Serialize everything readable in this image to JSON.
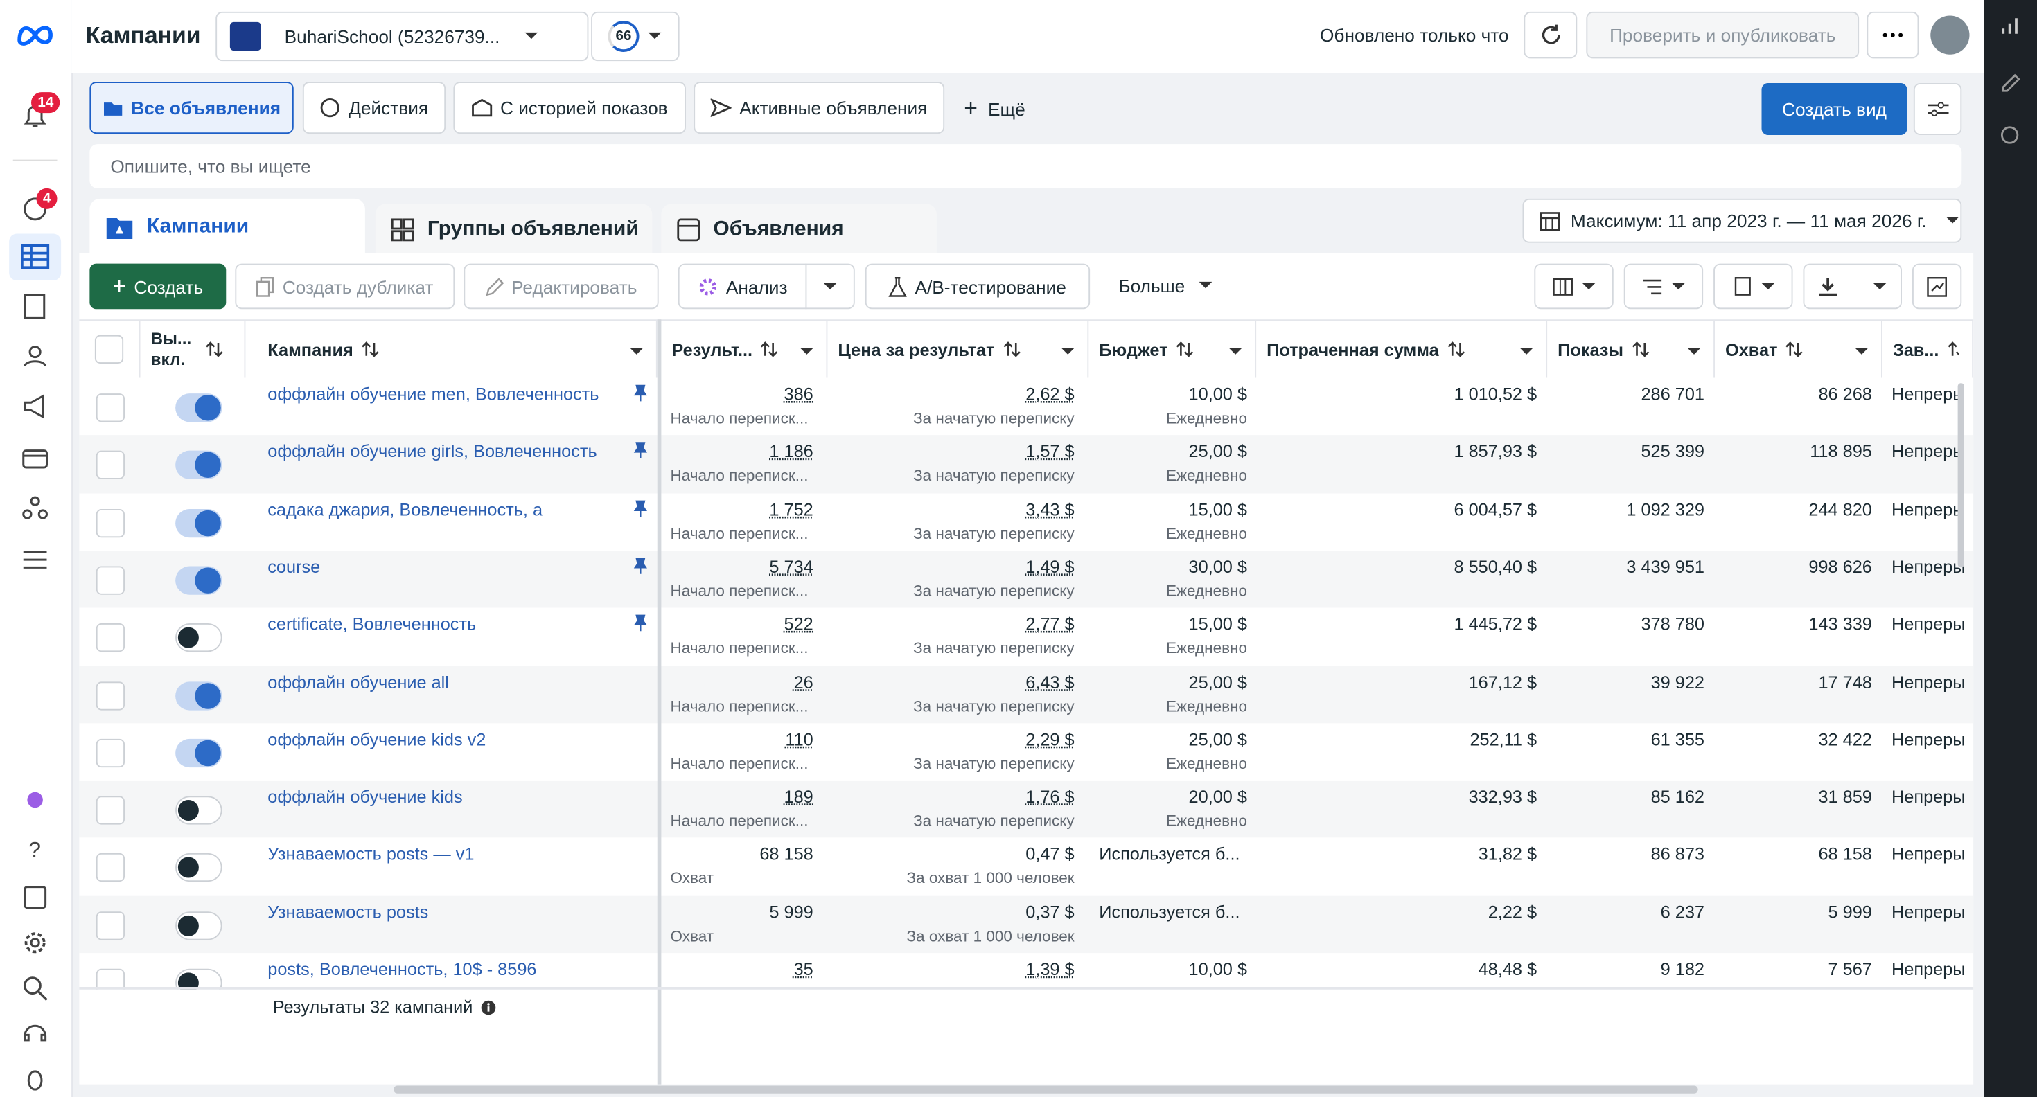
{
  "header": {
    "title": "Кампании",
    "account": "BuhariSchool (52326739...",
    "score": "66",
    "updated": "Обновлено только что",
    "publish": "Проверить и опубликовать"
  },
  "sidebar": {
    "notifications": "14",
    "alerts": "4"
  },
  "filters": {
    "items": [
      "Все объявления",
      "Действия",
      "С историей показов",
      "Активные объявления",
      "Ещё"
    ],
    "create_view": "Создать вид"
  },
  "search": {
    "placeholder": "Опишите, что вы ищете"
  },
  "tabs": {
    "items": [
      "Кампании",
      "Группы объявлений",
      "Объявления"
    ],
    "date_range": "Максимум: 11 апр 2023 г. — 11 мая 2026 г."
  },
  "toolbar": {
    "create": "Создать",
    "duplicate": "Создать дубликат",
    "edit": "Редактировать",
    "analysis": "Анализ",
    "ab_test": "A/B-тестирование",
    "more": "Больше"
  },
  "table": {
    "columns": [
      "Вы... вкл.",
      "Кампания",
      "Результ...",
      "Цена за результат",
      "Бюджет",
      "Потраченная сумма",
      "Показы",
      "Охват",
      "Зав..."
    ],
    "rows": [
      {
        "on": true,
        "pinned": true,
        "name": "оффлайн обучение men, Вовлеченность",
        "result": "386",
        "result_label": "Начало переписк...",
        "cost": "2,62 $",
        "cost_label": "За начатую переписку",
        "budget": "10,00 $",
        "budget_label": "Ежедневно",
        "spent": "1 010,52 $",
        "impressions": "286 701",
        "reach": "86 268",
        "end": "Непреры"
      },
      {
        "on": true,
        "pinned": true,
        "name": "оффлайн обучение girls, Вовлеченность",
        "result": "1 186",
        "result_label": "Начало переписк...",
        "cost": "1,57 $",
        "cost_label": "За начатую переписку",
        "budget": "25,00 $",
        "budget_label": "Ежедневно",
        "spent": "1 857,93 $",
        "impressions": "525 399",
        "reach": "118 895",
        "end": "Непреры"
      },
      {
        "on": true,
        "pinned": true,
        "name": "садака джария, Вовлеченность, а",
        "result": "1 752",
        "result_label": "Начало переписк...",
        "cost": "3,43 $",
        "cost_label": "За начатую переписку",
        "budget": "15,00 $",
        "budget_label": "Ежедневно",
        "spent": "6 004,57 $",
        "impressions": "1 092 329",
        "reach": "244 820",
        "end": "Непреры"
      },
      {
        "on": true,
        "pinned": true,
        "name": "course",
        "result": "5 734",
        "result_label": "Начало переписк...",
        "cost": "1,49 $",
        "cost_label": "За начатую переписку",
        "budget": "30,00 $",
        "budget_label": "Ежедневно",
        "spent": "8 550,40 $",
        "impressions": "3 439 951",
        "reach": "998 626",
        "end": "Непреры"
      },
      {
        "on": false,
        "pinned": true,
        "name": "certificate, Вовлеченность",
        "result": "522",
        "result_label": "Начало переписк...",
        "cost": "2,77 $",
        "cost_label": "За начатую переписку",
        "budget": "15,00 $",
        "budget_label": "Ежедневно",
        "spent": "1 445,72 $",
        "impressions": "378 780",
        "reach": "143 339",
        "end": "Непреры"
      },
      {
        "on": true,
        "pinned": false,
        "name": "оффлайн обучение all",
        "result": "26",
        "result_label": "Начало переписк...",
        "cost": "6,43 $",
        "cost_label": "За начатую переписку",
        "budget": "25,00 $",
        "budget_label": "Ежедневно",
        "spent": "167,12 $",
        "impressions": "39 922",
        "reach": "17 748",
        "end": "Непреры"
      },
      {
        "on": true,
        "pinned": false,
        "name": "оффлайн обучение kids v2",
        "result": "110",
        "result_label": "Начало переписк...",
        "cost": "2,29 $",
        "cost_label": "За начатую переписку",
        "budget": "25,00 $",
        "budget_label": "Ежедневно",
        "spent": "252,11 $",
        "impressions": "61 355",
        "reach": "32 422",
        "end": "Непреры"
      },
      {
        "on": false,
        "pinned": false,
        "name": "оффлайн обучение kids",
        "result": "189",
        "result_label": "Начало переписк...",
        "cost": "1,76 $",
        "cost_label": "За начатую переписку",
        "budget": "20,00 $",
        "budget_label": "Ежедневно",
        "spent": "332,93 $",
        "impressions": "85 162",
        "reach": "31 859",
        "end": "Непреры"
      },
      {
        "on": false,
        "pinned": false,
        "name": "Узнаваемость posts — v1",
        "result": "68 158",
        "result_label": "Охват",
        "cost": "0,47 $",
        "cost_label": "За охват 1 000 человек",
        "budget": "Используется б...",
        "spent": "31,82 $",
        "impressions": "86 873",
        "reach": "68 158",
        "end": "Непреры"
      },
      {
        "on": false,
        "pinned": false,
        "name": "Узнаваемость posts",
        "result": "5 999",
        "result_label": "Охват",
        "cost": "0,37 $",
        "cost_label": "За охват 1 000 человек",
        "budget": "Используется б...",
        "spent": "2,22 $",
        "impressions": "6 237",
        "reach": "5 999",
        "end": "Непреры"
      },
      {
        "on": false,
        "pinned": false,
        "name": "posts, Вовлеченность, 10$ - 8596",
        "result": "35",
        "cost": "1,39 $",
        "budget": "10,00 $",
        "spent": "48,48 $",
        "impressions": "9 182",
        "reach": "7 567",
        "end": "Непреры"
      }
    ],
    "footer": "Результаты 32 кампаний"
  }
}
